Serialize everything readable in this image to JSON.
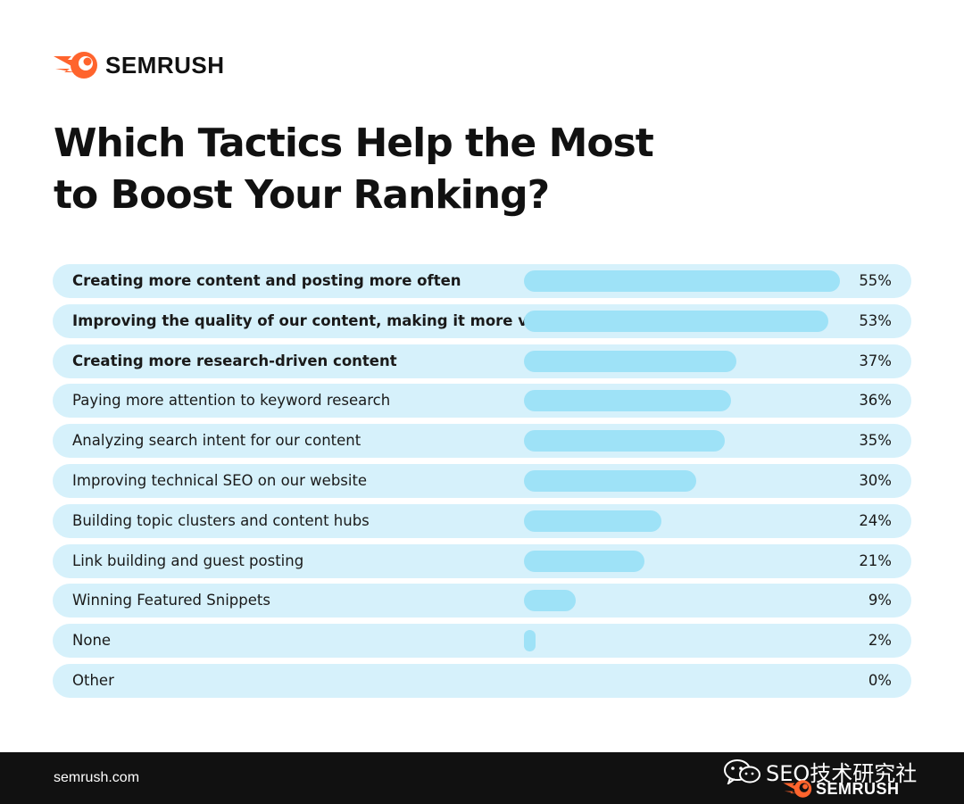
{
  "brand": {
    "name": "SEMRUSH",
    "logo_icon": "semrush-fireball-icon",
    "accent": "#ff642d"
  },
  "footer": {
    "url": "semrush.com",
    "watermark_text": "SEO技术研究社",
    "watermark_icon": "wechat-icon",
    "watermark_brand": "SEMRUSH"
  },
  "colors": {
    "row_bg": "#d6f1fb",
    "bar": "#9ee2f7",
    "footer_bg": "#111111"
  },
  "chart_data": {
    "type": "bar",
    "orientation": "horizontal",
    "title": "Which Tactics Help the Most to Boost Your Ranking?",
    "title_lines": [
      "Which Tactics Help the Most",
      "to Boost Your Ranking?"
    ],
    "categories": [
      "Creating more content and posting  more often",
      "Improving the quality of our content, making it more valuable",
      "Creating more research-driven content",
      "Paying more attention to keyword research",
      "Analyzing search intent for our content",
      "Improving technical SEO on our website",
      "Building topic clusters and content hubs",
      "Link building and guest posting",
      "Winning Featured Snippets",
      "None",
      "Other"
    ],
    "values": [
      55,
      53,
      37,
      36,
      35,
      30,
      24,
      21,
      9,
      2,
      0
    ],
    "value_labels": [
      "55%",
      "53%",
      "37%",
      "36%",
      "35%",
      "30%",
      "24%",
      "21%",
      "9%",
      "2%",
      "0%"
    ],
    "bold_rows": [
      0,
      1,
      2
    ],
    "unit": "%",
    "xlim": [
      0,
      55
    ]
  }
}
